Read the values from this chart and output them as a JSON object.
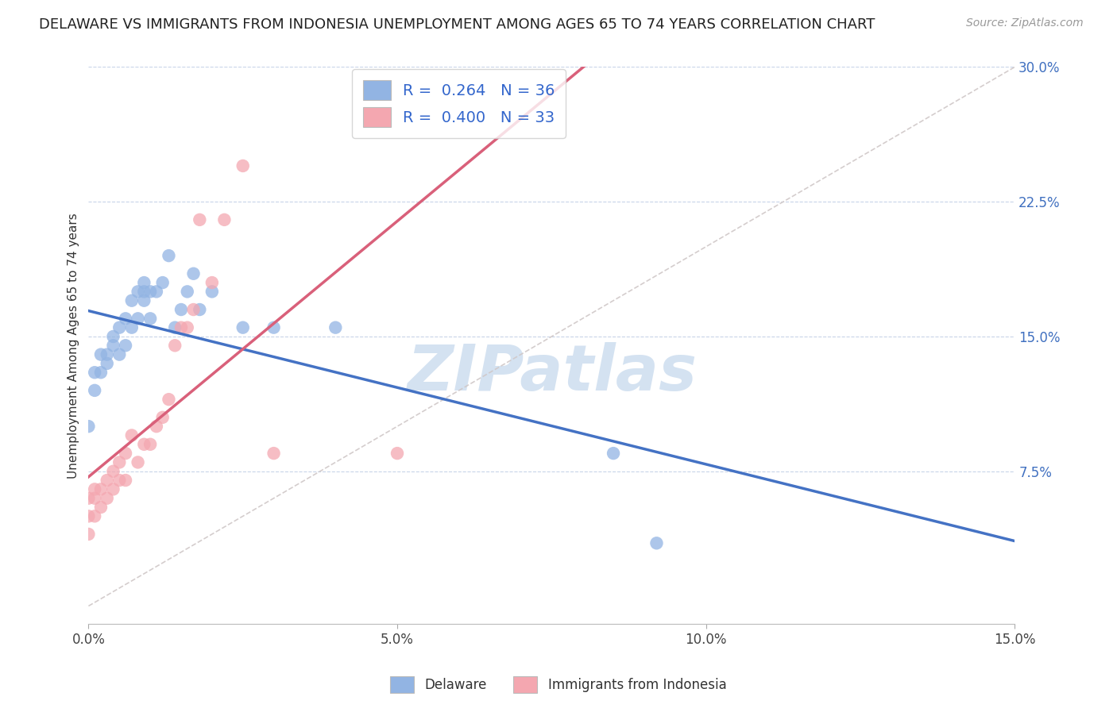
{
  "title": "DELAWARE VS IMMIGRANTS FROM INDONESIA UNEMPLOYMENT AMONG AGES 65 TO 74 YEARS CORRELATION CHART",
  "source": "Source: ZipAtlas.com",
  "ylabel": "Unemployment Among Ages 65 to 74 years",
  "xlim": [
    0.0,
    0.15
  ],
  "ylim": [
    -0.01,
    0.3
  ],
  "xticks": [
    0.0,
    0.05,
    0.1,
    0.15
  ],
  "xticklabels": [
    "0.0%",
    "5.0%",
    "10.0%",
    "15.0%"
  ],
  "yticks": [
    0.0,
    0.075,
    0.15,
    0.225,
    0.3
  ],
  "yticklabels": [
    "",
    "7.5%",
    "15.0%",
    "22.5%",
    "30.0%"
  ],
  "delaware_R": 0.264,
  "delaware_N": 36,
  "indonesia_R": 0.4,
  "indonesia_N": 33,
  "delaware_color": "#92b4e3",
  "indonesia_color": "#f4a7b0",
  "delaware_line_color": "#4472c4",
  "indonesia_line_color": "#d9607a",
  "reference_line_color": "#d0c8c8",
  "watermark": "ZIPatlas",
  "watermark_color": "#b8cfe8",
  "background_color": "#ffffff",
  "grid_color": "#c8d4e8",
  "title_fontsize": 13,
  "delaware_x": [
    0.0,
    0.001,
    0.001,
    0.002,
    0.002,
    0.003,
    0.003,
    0.004,
    0.004,
    0.005,
    0.005,
    0.006,
    0.006,
    0.007,
    0.007,
    0.008,
    0.008,
    0.009,
    0.009,
    0.009,
    0.01,
    0.01,
    0.011,
    0.012,
    0.013,
    0.014,
    0.015,
    0.016,
    0.017,
    0.018,
    0.02,
    0.025,
    0.03,
    0.04,
    0.085,
    0.092
  ],
  "delaware_y": [
    0.1,
    0.12,
    0.13,
    0.13,
    0.14,
    0.135,
    0.14,
    0.145,
    0.15,
    0.14,
    0.155,
    0.145,
    0.16,
    0.155,
    0.17,
    0.16,
    0.175,
    0.17,
    0.175,
    0.18,
    0.16,
    0.175,
    0.175,
    0.18,
    0.195,
    0.155,
    0.165,
    0.175,
    0.185,
    0.165,
    0.175,
    0.155,
    0.155,
    0.155,
    0.085,
    0.035
  ],
  "indonesia_x": [
    0.0,
    0.0,
    0.0,
    0.001,
    0.001,
    0.001,
    0.002,
    0.002,
    0.003,
    0.003,
    0.004,
    0.004,
    0.005,
    0.005,
    0.006,
    0.006,
    0.007,
    0.008,
    0.009,
    0.01,
    0.011,
    0.012,
    0.013,
    0.014,
    0.015,
    0.016,
    0.017,
    0.018,
    0.02,
    0.022,
    0.025,
    0.03,
    0.05
  ],
  "indonesia_y": [
    0.04,
    0.05,
    0.06,
    0.05,
    0.06,
    0.065,
    0.055,
    0.065,
    0.06,
    0.07,
    0.065,
    0.075,
    0.07,
    0.08,
    0.07,
    0.085,
    0.095,
    0.08,
    0.09,
    0.09,
    0.1,
    0.105,
    0.115,
    0.145,
    0.155,
    0.155,
    0.165,
    0.215,
    0.18,
    0.215,
    0.245,
    0.085,
    0.085
  ]
}
